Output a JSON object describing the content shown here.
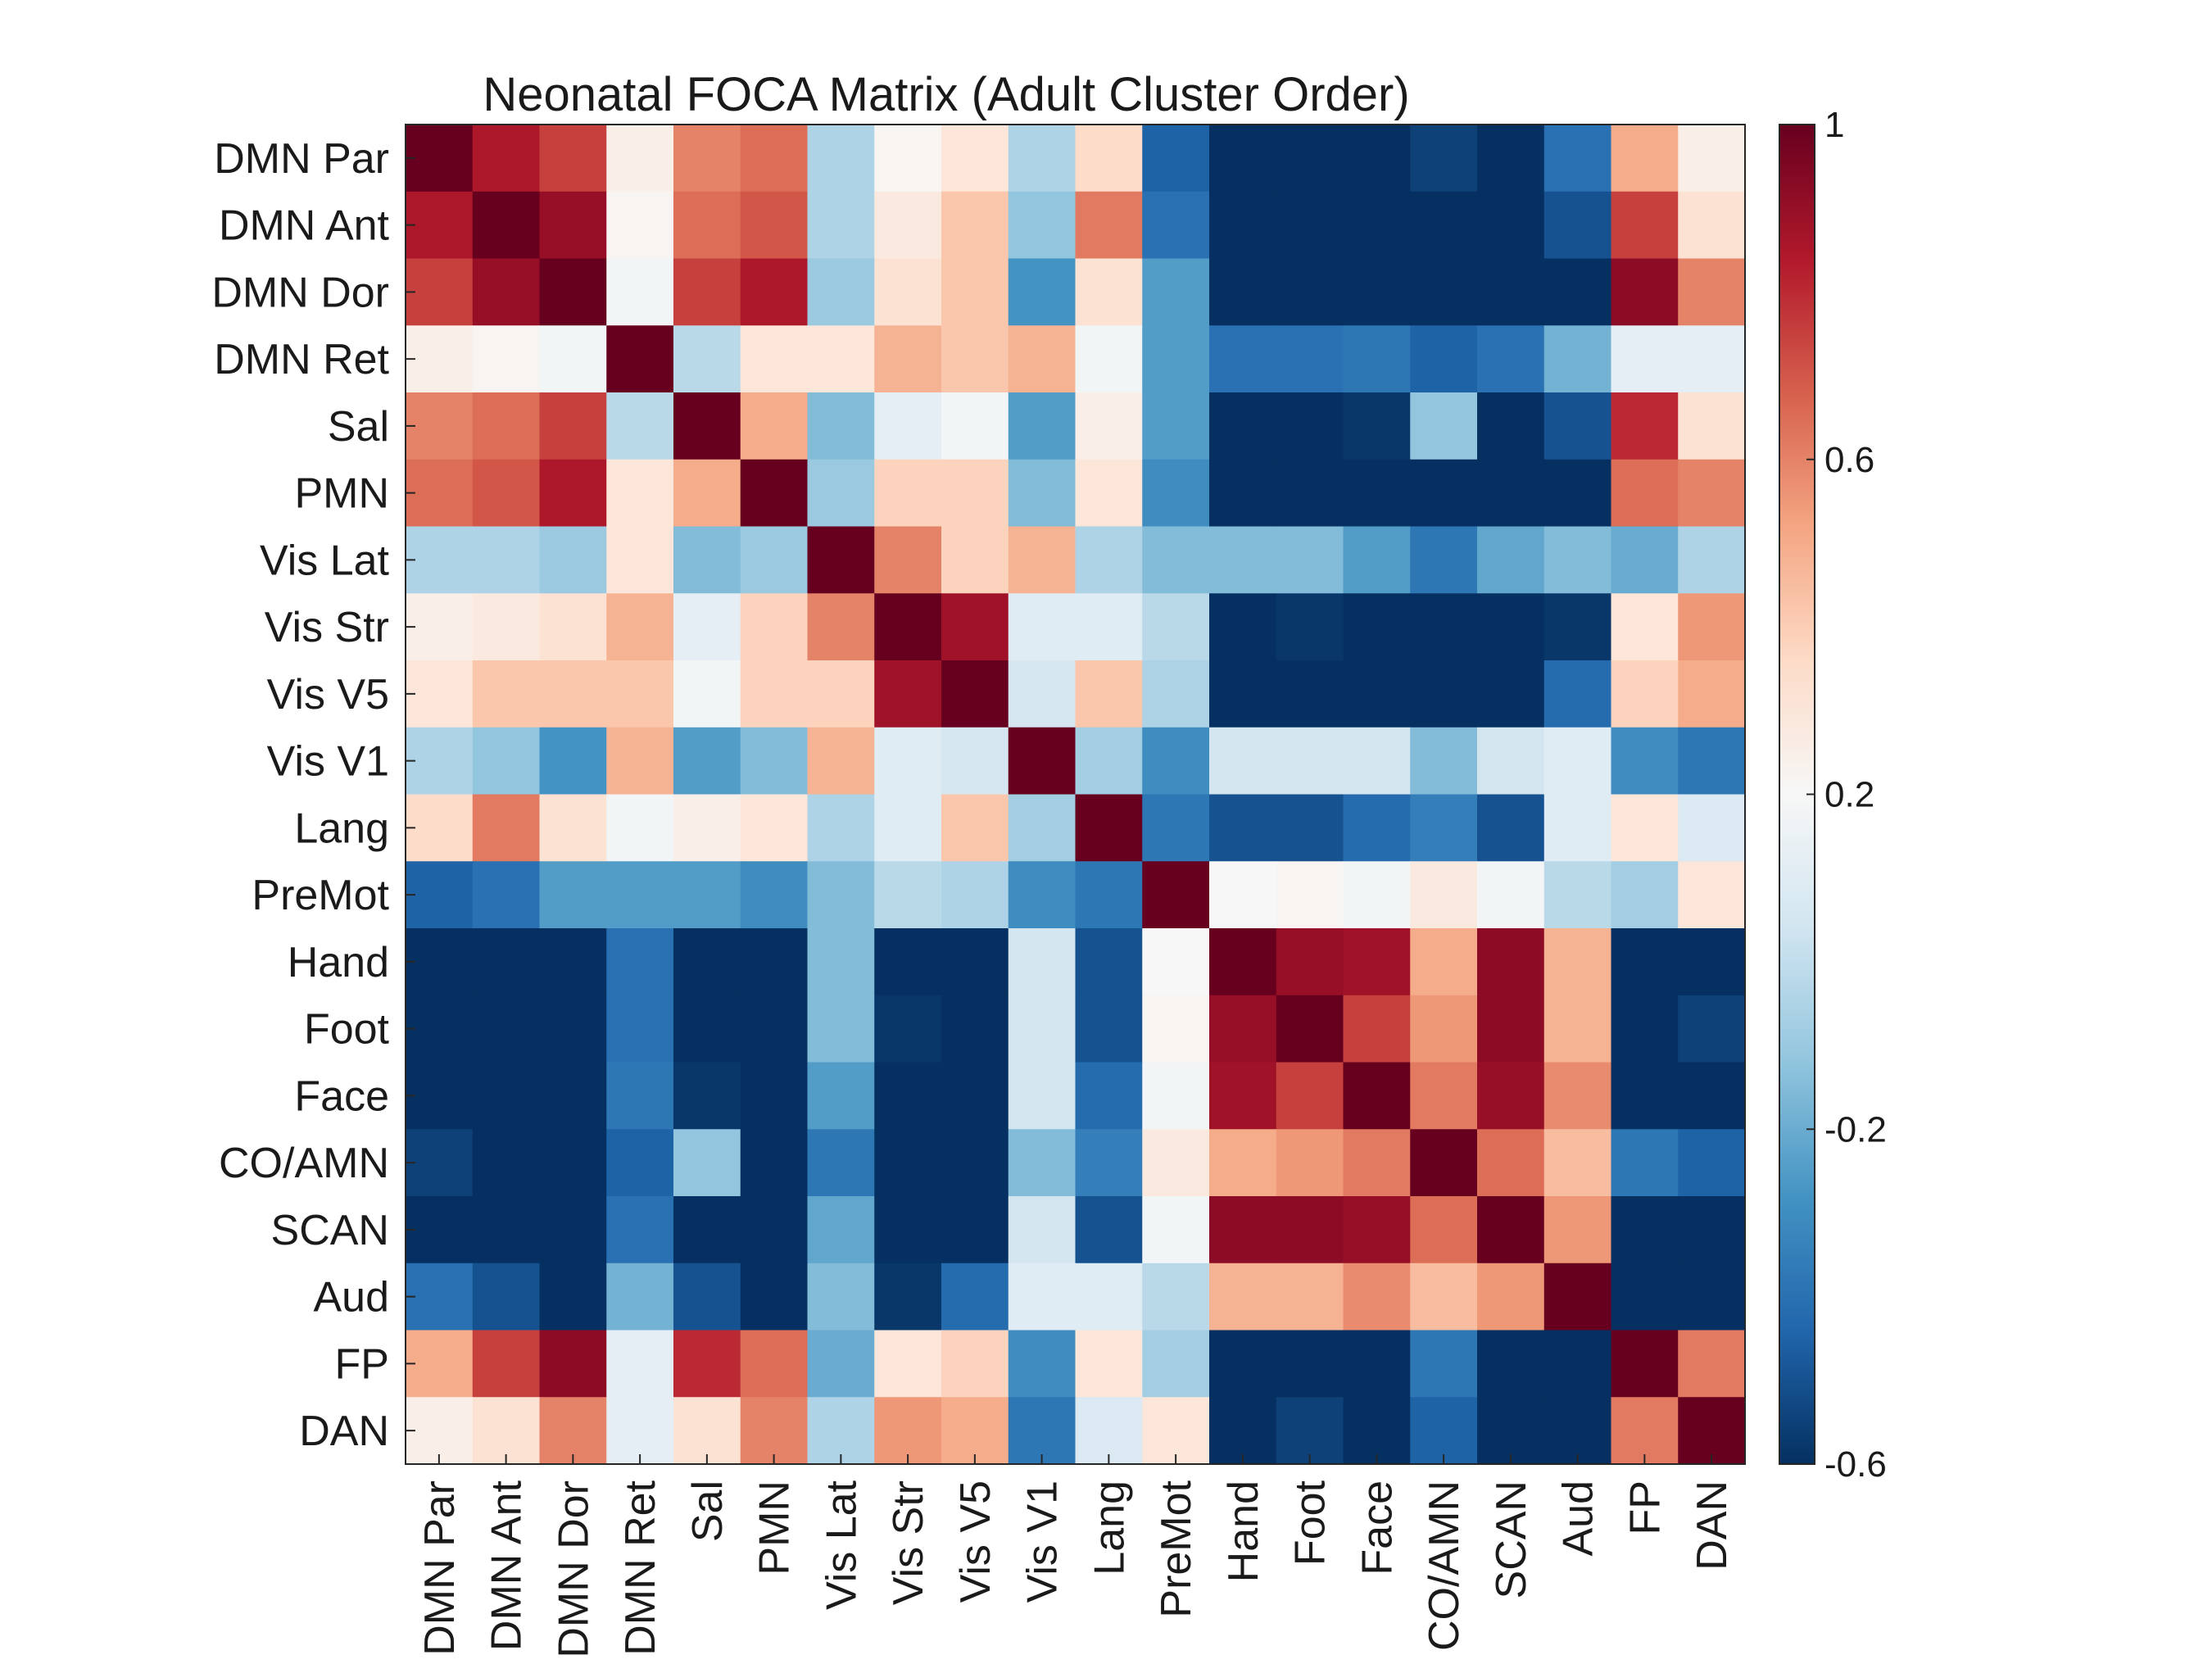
{
  "chart_data": {
    "type": "heatmap",
    "title": "Neonatal FOCA Matrix (Adult Cluster Order)",
    "xlabel": "",
    "ylabel": "",
    "labels": [
      "DMN Par",
      "DMN Ant",
      "DMN Dor",
      "DMN Ret",
      "Sal",
      "PMN",
      "Vis Lat",
      "Vis Str",
      "Vis V5",
      "Vis V1",
      "Lang",
      "PreMot",
      "Hand",
      "Foot",
      "Face",
      "CO/AMN",
      "SCAN",
      "Aud",
      "FP",
      "DAN"
    ],
    "matrix": [
      [
        1.0,
        0.85,
        0.75,
        0.25,
        0.6,
        0.65,
        -0.05,
        0.22,
        0.3,
        -0.05,
        0.35,
        -0.45,
        -0.6,
        -0.6,
        -0.6,
        -0.55,
        -0.6,
        -0.4,
        0.5,
        0.25
      ],
      [
        0.85,
        1.0,
        0.9,
        0.22,
        0.65,
        0.7,
        -0.05,
        0.28,
        0.42,
        -0.12,
        0.62,
        -0.4,
        -0.6,
        -0.6,
        -0.6,
        -0.6,
        -0.6,
        -0.5,
        0.75,
        0.32
      ],
      [
        0.75,
        0.9,
        1.0,
        0.18,
        0.75,
        0.85,
        -0.1,
        0.32,
        0.42,
        -0.28,
        0.32,
        -0.25,
        -0.6,
        -0.6,
        -0.6,
        -0.6,
        -0.6,
        -0.6,
        0.92,
        0.6
      ],
      [
        0.25,
        0.22,
        0.18,
        1.0,
        -0.02,
        0.3,
        0.3,
        0.48,
        0.42,
        0.48,
        0.18,
        -0.25,
        -0.4,
        -0.4,
        -0.38,
        -0.45,
        -0.4,
        -0.18,
        0.12,
        0.12
      ],
      [
        0.6,
        0.65,
        0.75,
        -0.02,
        1.0,
        0.5,
        -0.15,
        0.12,
        0.18,
        -0.25,
        0.25,
        -0.25,
        -0.6,
        -0.6,
        -0.58,
        -0.12,
        -0.6,
        -0.5,
        0.8,
        0.32
      ],
      [
        0.65,
        0.7,
        0.85,
        0.3,
        0.5,
        1.0,
        -0.1,
        0.38,
        0.38,
        -0.15,
        0.3,
        -0.3,
        -0.6,
        -0.6,
        -0.6,
        -0.6,
        -0.6,
        -0.6,
        0.65,
        0.6
      ],
      [
        -0.05,
        -0.05,
        -0.1,
        0.3,
        -0.15,
        -0.1,
        1.0,
        0.6,
        0.38,
        0.48,
        -0.05,
        -0.15,
        -0.15,
        -0.15,
        -0.25,
        -0.38,
        -0.22,
        -0.15,
        -0.2,
        -0.05
      ],
      [
        0.25,
        0.28,
        0.32,
        0.48,
        0.12,
        0.38,
        0.6,
        1.0,
        0.88,
        0.1,
        0.1,
        -0.02,
        -0.6,
        -0.58,
        -0.6,
        -0.6,
        -0.6,
        -0.58,
        0.3,
        0.55
      ],
      [
        0.3,
        0.42,
        0.42,
        0.42,
        0.18,
        0.38,
        0.38,
        0.88,
        1.0,
        0.06,
        0.42,
        -0.05,
        -0.6,
        -0.6,
        -0.6,
        -0.6,
        -0.6,
        -0.42,
        0.38,
        0.5
      ],
      [
        -0.05,
        -0.12,
        -0.28,
        0.48,
        -0.25,
        -0.15,
        0.48,
        0.1,
        0.06,
        1.0,
        -0.08,
        -0.3,
        0.05,
        0.05,
        0.05,
        -0.15,
        0.05,
        0.1,
        -0.3,
        -0.38
      ],
      [
        0.35,
        0.62,
        0.32,
        0.18,
        0.25,
        0.3,
        -0.05,
        0.1,
        0.42,
        -0.08,
        1.0,
        -0.38,
        -0.5,
        -0.5,
        -0.42,
        -0.35,
        -0.5,
        0.1,
        0.3,
        0.08
      ],
      [
        -0.45,
        -0.4,
        -0.25,
        -0.25,
        -0.25,
        -0.3,
        -0.15,
        -0.02,
        -0.05,
        -0.3,
        -0.38,
        1.0,
        0.2,
        0.22,
        0.18,
        0.28,
        0.18,
        -0.02,
        -0.08,
        0.3
      ],
      [
        -0.6,
        -0.6,
        -0.6,
        -0.4,
        -0.6,
        -0.6,
        -0.15,
        -0.6,
        -0.6,
        0.05,
        -0.5,
        0.2,
        1.0,
        0.9,
        0.88,
        0.5,
        0.92,
        0.48,
        -0.6,
        -0.6
      ],
      [
        -0.6,
        -0.6,
        -0.6,
        -0.4,
        -0.6,
        -0.6,
        -0.15,
        -0.58,
        -0.6,
        0.05,
        -0.5,
        0.22,
        0.9,
        1.0,
        0.75,
        0.55,
        0.92,
        0.48,
        -0.6,
        -0.55
      ],
      [
        -0.6,
        -0.6,
        -0.6,
        -0.38,
        -0.58,
        -0.6,
        -0.25,
        -0.6,
        -0.6,
        0.05,
        -0.42,
        0.18,
        0.88,
        0.75,
        1.0,
        0.62,
        0.9,
        0.58,
        -0.6,
        -0.6
      ],
      [
        -0.55,
        -0.6,
        -0.6,
        -0.45,
        -0.12,
        -0.6,
        -0.38,
        -0.6,
        -0.6,
        -0.15,
        -0.35,
        0.28,
        0.5,
        0.55,
        0.62,
        1.0,
        0.65,
        0.45,
        -0.38,
        -0.45
      ],
      [
        -0.6,
        -0.6,
        -0.6,
        -0.4,
        -0.6,
        -0.6,
        -0.22,
        -0.6,
        -0.6,
        0.05,
        -0.5,
        0.18,
        0.92,
        0.92,
        0.9,
        0.65,
        1.0,
        0.55,
        -0.6,
        -0.6
      ],
      [
        -0.4,
        -0.5,
        -0.6,
        -0.18,
        -0.5,
        -0.6,
        -0.15,
        -0.58,
        -0.42,
        0.1,
        0.1,
        -0.02,
        0.48,
        0.48,
        0.58,
        0.45,
        0.55,
        1.0,
        -0.6,
        -0.6
      ],
      [
        0.5,
        0.75,
        0.92,
        0.12,
        0.8,
        0.65,
        -0.2,
        0.3,
        0.38,
        -0.3,
        0.3,
        -0.08,
        -0.6,
        -0.6,
        -0.6,
        -0.38,
        -0.6,
        -0.6,
        1.0,
        0.62
      ],
      [
        0.25,
        0.32,
        0.6,
        0.12,
        0.32,
        0.6,
        -0.05,
        0.55,
        0.5,
        -0.38,
        0.08,
        0.3,
        -0.6,
        -0.55,
        -0.6,
        -0.45,
        -0.6,
        -0.6,
        0.62,
        1.0
      ]
    ],
    "colorbar": {
      "min": -0.6,
      "max": 1,
      "ticks": [
        -0.6,
        -0.2,
        0.2,
        0.6,
        1
      ],
      "tick_labels": [
        "-0.6",
        "-0.2",
        "0.2",
        "0.6",
        "1"
      ],
      "colormap": [
        "#053061",
        "#2166ac",
        "#4393c3",
        "#92c5de",
        "#d1e5f0",
        "#f7f7f7",
        "#fddbc7",
        "#f4a582",
        "#d6604d",
        "#b2182b",
        "#67001f"
      ]
    },
    "grid": false,
    "legend": "colorbar-right"
  }
}
